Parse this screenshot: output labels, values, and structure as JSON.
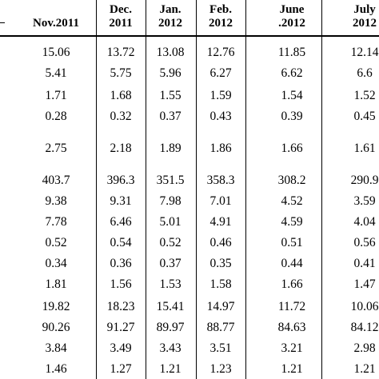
{
  "table": {
    "columns": [
      {
        "lines": [
          "Nov.2011"
        ]
      },
      {
        "lines": [
          "Dec.",
          "2011"
        ]
      },
      {
        "lines": [
          "Jan.",
          "2012"
        ]
      },
      {
        "lines": [
          "Feb.",
          "2012"
        ]
      },
      {
        "lines": [
          "June",
          ".2012"
        ]
      },
      {
        "lines": [
          "July",
          "2012"
        ]
      }
    ],
    "rows": [
      [
        "15.06",
        "13.72",
        "13.08",
        "12.76",
        "11.85",
        "12.14"
      ],
      [
        "5.41",
        "5.75",
        "5.96",
        "6.27",
        "6.62",
        "6.6"
      ],
      [
        "1.71",
        "1.68",
        "1.55",
        "1.59",
        "1.54",
        "1.52"
      ],
      [
        "0.28",
        "0.32",
        "0.37",
        "0.43",
        "0.39",
        "0.45"
      ],
      [
        "2.75",
        "2.18",
        "1.89",
        "1.86",
        "1.66",
        "1.61"
      ],
      [
        "403.7",
        "396.3",
        "351.5",
        "358.3",
        "308.2",
        "290.9"
      ],
      [
        "9.38",
        "9.31",
        "7.98",
        "7.01",
        "4.52",
        "3.59"
      ],
      [
        "7.78",
        "6.46",
        "5.01",
        "4.91",
        "4.59",
        "4.04"
      ],
      [
        "0.52",
        "0.54",
        "0.52",
        "0.46",
        "0.51",
        "0.56"
      ],
      [
        "0.34",
        "0.36",
        "0.37",
        "0.35",
        "0.44",
        "0.41"
      ],
      [
        "1.81",
        "1.56",
        "1.53",
        "1.58",
        "1.66",
        "1.47"
      ],
      [
        "19.82",
        "18.23",
        "15.41",
        "14.97",
        "11.72",
        "10.06"
      ],
      [
        "90.26",
        "91.27",
        "89.97",
        "88.77",
        "84.63",
        "84.12"
      ],
      [
        "3.84",
        "3.49",
        "3.43",
        "3.51",
        "3.21",
        "2.98"
      ],
      [
        "1.46",
        "1.27",
        "1.21",
        "1.23",
        "1.21",
        "1.21"
      ]
    ]
  }
}
